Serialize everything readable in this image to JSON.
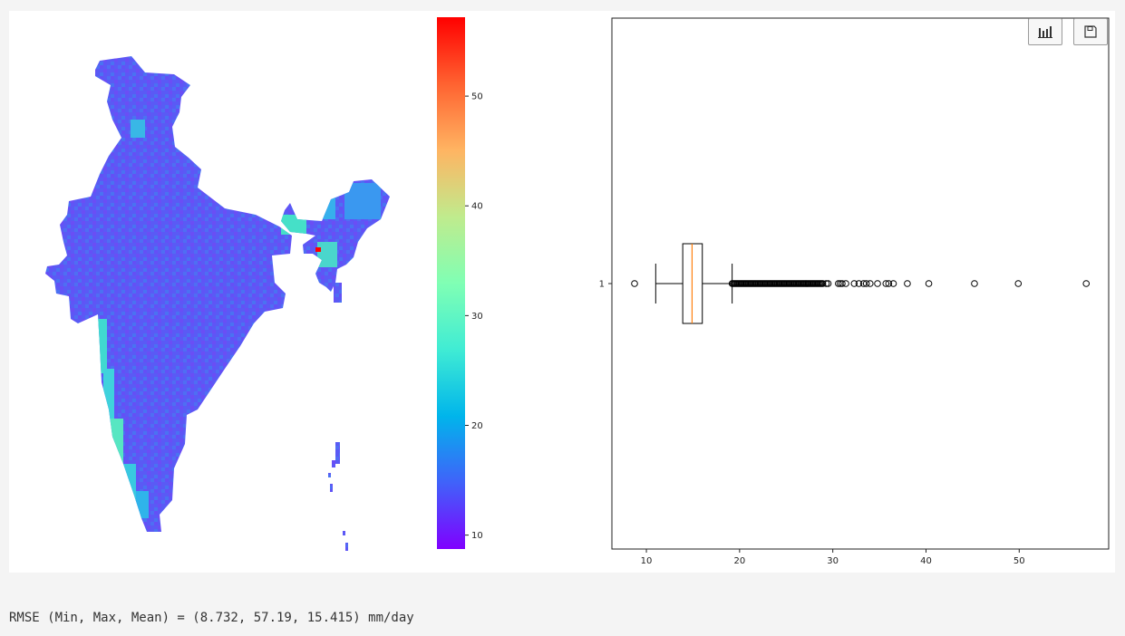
{
  "toolbar": {
    "chart_icon": "bar-chart-icon",
    "save_icon": "floppy-disk-icon"
  },
  "output_text": "RMSE (Min, Max, Mean) = (8.732, 57.19, 15.415) mm/day",
  "chart_data": [
    {
      "type": "heatmap",
      "title": "",
      "colormap": "rainbow",
      "colorbar": {
        "range": [
          8.732,
          57.19
        ],
        "ticks": [
          10,
          20,
          30,
          40,
          50
        ]
      },
      "min": 8.732,
      "max": 57.19,
      "mean": 15.415,
      "hotspot_value": 57.19,
      "coastal_band_value": 25
    },
    {
      "type": "box",
      "orientation": "horizontal",
      "category_labels": [
        "1"
      ],
      "xlim": [
        6.3,
        59.6
      ],
      "xticks": [
        10,
        20,
        30,
        40,
        50
      ],
      "whisker_low": 11.0,
      "q1": 13.9,
      "median": 14.9,
      "q3": 16.0,
      "whisker_high": 19.2,
      "outliers_low": [
        8.73
      ],
      "dense_outlier_range": [
        19.2,
        29.0
      ],
      "outliers_high": [
        29.3,
        29.5,
        30.6,
        30.8,
        31.0,
        31.4,
        32.3,
        32.8,
        33.3,
        33.6,
        34.0,
        34.8,
        35.7,
        36.0,
        36.5,
        38.0,
        40.3,
        45.2,
        49.9,
        57.19
      ],
      "median_color": "#ff7f0e"
    }
  ]
}
